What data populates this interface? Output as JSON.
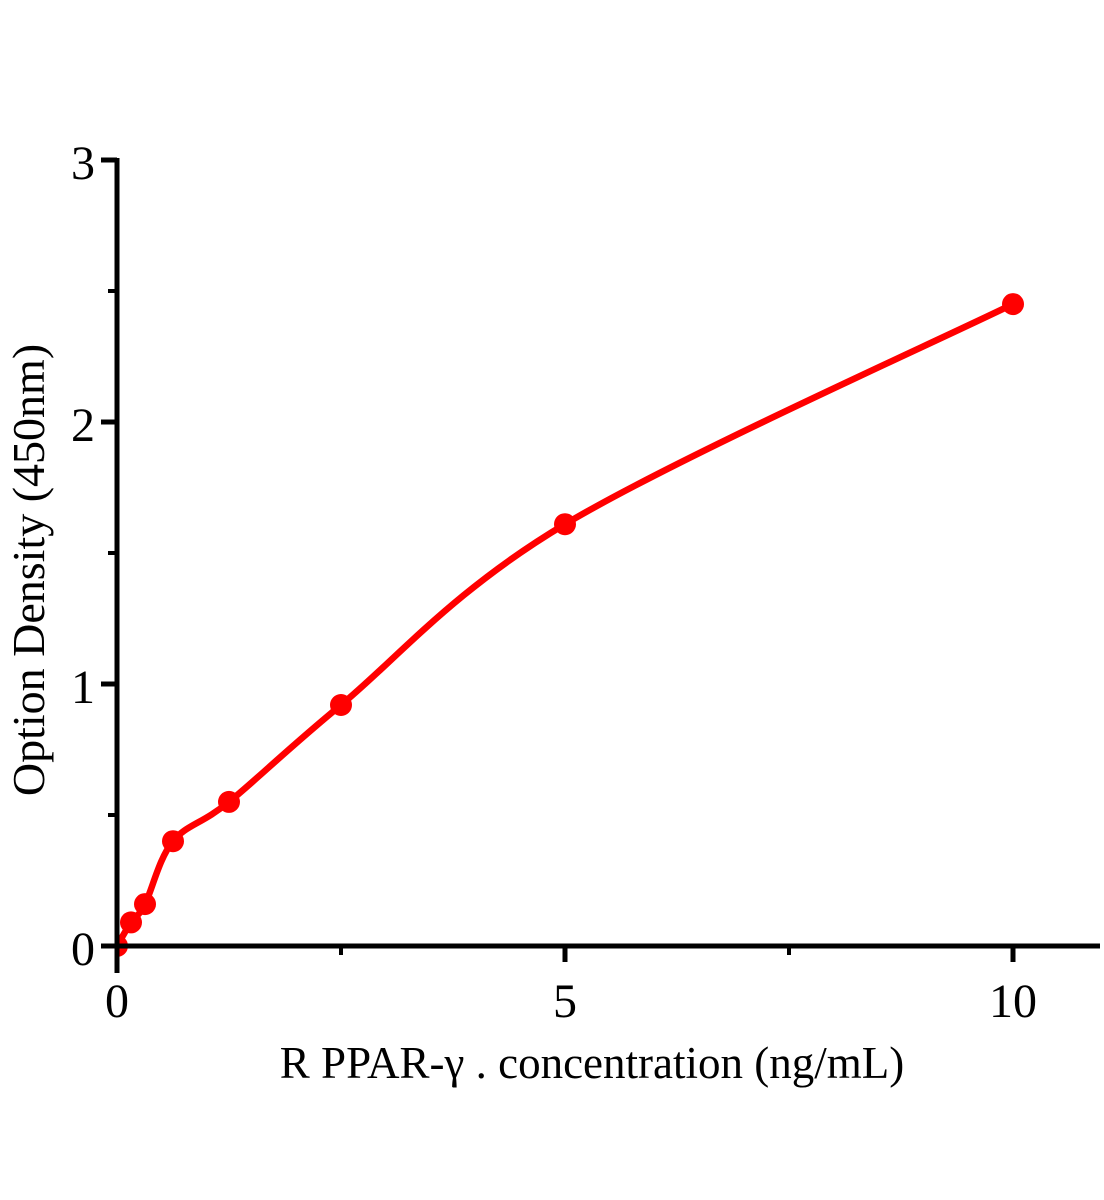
{
  "figure_title": "",
  "chart_data": {
    "type": "scatter",
    "subtype": "standard-curve-with-fit-line",
    "title": "",
    "xlabel": "R PPAR-γ . concentration（ng/mL）",
    "ylabel": "Option Density（450nm）",
    "xlim": [
      0,
      11
    ],
    "ylim": [
      0,
      3
    ],
    "grid": false,
    "legend": "none",
    "x_ticks_major": [
      {
        "v": 0,
        "label": "0"
      },
      {
        "v": 5,
        "label": "5"
      },
      {
        "v": 10,
        "label": "10"
      }
    ],
    "x_ticks_minor": [
      2.5,
      7.5
    ],
    "y_ticks_major": [
      {
        "v": 0,
        "label": "0"
      },
      {
        "v": 1,
        "label": "1"
      },
      {
        "v": 2,
        "label": "2"
      },
      {
        "v": 3,
        "label": "3"
      }
    ],
    "y_ticks_minor": [
      0.5,
      1.5,
      2.5
    ],
    "points": [
      {
        "x": 0,
        "y": 0
      },
      {
        "x": 0.156,
        "y": 0.09
      },
      {
        "x": 0.312,
        "y": 0.16
      },
      {
        "x": 0.625,
        "y": 0.4
      },
      {
        "x": 1.25,
        "y": 0.55
      },
      {
        "x": 2.5,
        "y": 0.92
      },
      {
        "x": 5,
        "y": 1.61
      },
      {
        "x": 10,
        "y": 2.45
      }
    ],
    "colors": {
      "curve": "#ff0000",
      "marker": "#ff0000",
      "axis": "#000000",
      "text": "#000000",
      "background": "#ffffff"
    },
    "marker_radius": 11,
    "curve_width": 6.5,
    "axis_width": 5
  }
}
